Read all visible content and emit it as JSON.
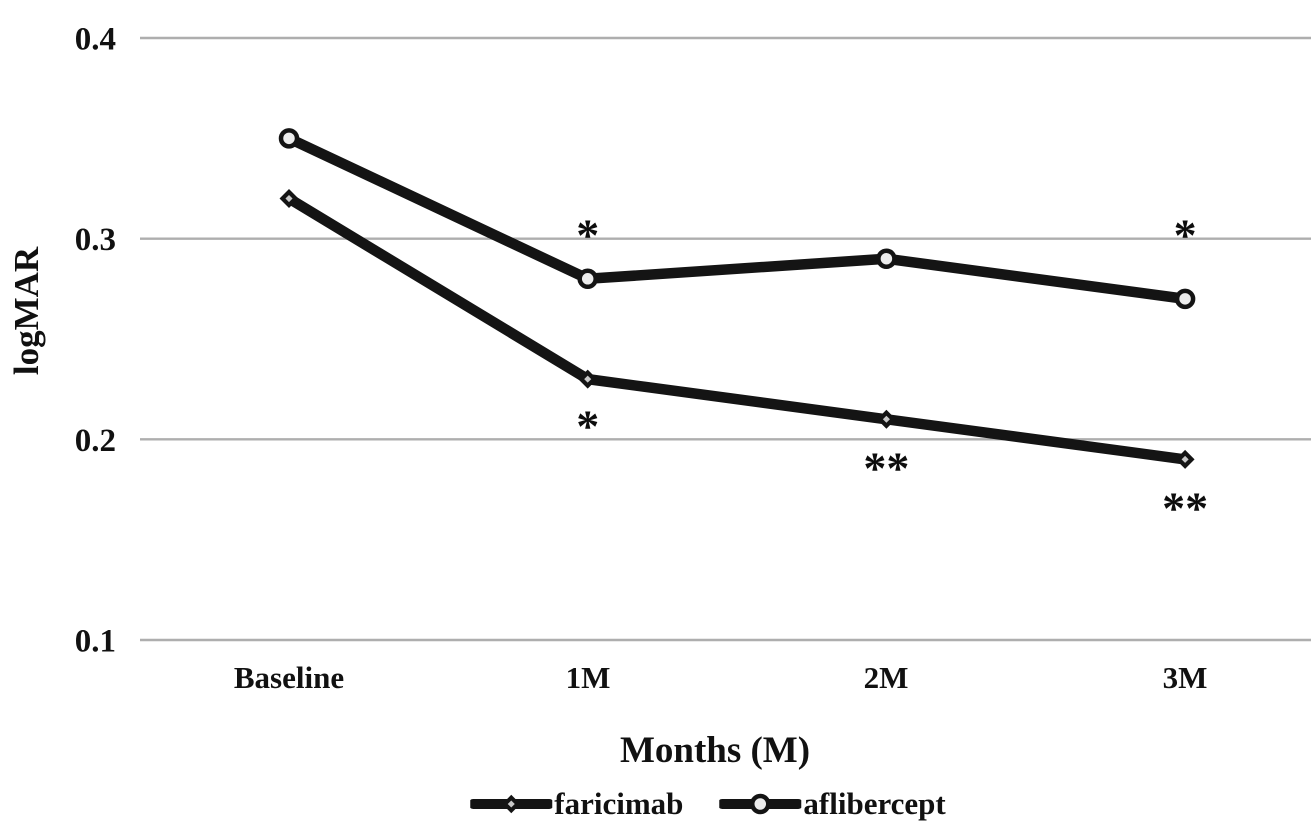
{
  "figure": {
    "background": "#ffffff"
  },
  "chart_data": {
    "type": "line",
    "title": "",
    "xlabel": "Months (M)",
    "ylabel": "logMAR",
    "categories": [
      "Baseline",
      "1M",
      "2M",
      "3M"
    ],
    "series": [
      {
        "name": "faricimab",
        "marker": "diamond",
        "line_color": "#141414",
        "marker_fill": "#c9c9c9",
        "values": [
          0.32,
          0.23,
          0.21,
          0.19
        ]
      },
      {
        "name": "aflibercept",
        "marker": "circle",
        "line_color": "#141414",
        "marker_fill": "#ededed",
        "values": [
          0.35,
          0.28,
          0.29,
          0.27
        ]
      }
    ],
    "y_ticks": [
      "0.4",
      "0.3",
      "0.2",
      "0.1"
    ],
    "ylim": [
      0.1,
      0.4
    ],
    "grid": true,
    "gridline_color": "#aeaeae",
    "legend_position": "bottom",
    "annotations": [
      {
        "text": "*",
        "x_index": 1,
        "y": 0.305,
        "series": "aflibercept",
        "placement": "above-point"
      },
      {
        "text": "*",
        "x_index": 1,
        "y": 0.21,
        "series": "faricimab",
        "placement": "below-point"
      },
      {
        "text": "**",
        "x_index": 2,
        "y": 0.189,
        "series": "faricimab",
        "placement": "below-point"
      },
      {
        "text": "*",
        "x_index": 3,
        "y": 0.305,
        "series": "aflibercept",
        "placement": "above-point"
      },
      {
        "text": "**",
        "x_index": 3,
        "y": 0.169,
        "series": "faricimab",
        "placement": "below-point"
      }
    ]
  }
}
